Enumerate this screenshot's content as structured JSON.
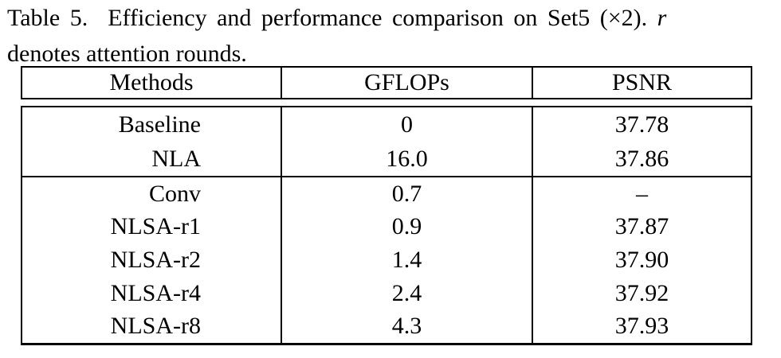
{
  "caption": {
    "label": "Table 5.  ",
    "line1_rest": "Efficiency and performance comparison on Set5 (×2). ",
    "italic_var": "r",
    "line2": "denotes attention rounds."
  },
  "table": {
    "headers": [
      "Methods",
      "GFLOPs",
      "PSNR"
    ],
    "section1": [
      {
        "method": "Baseline",
        "gflops": "0",
        "psnr": "37.78"
      },
      {
        "method": "NLA",
        "gflops": "16.0",
        "psnr": "37.86"
      }
    ],
    "section2": [
      {
        "method": "Conv",
        "gflops": "0.7",
        "psnr": "–"
      },
      {
        "method": "NLSA-r1",
        "gflops": "0.9",
        "psnr": "37.87"
      },
      {
        "method": "NLSA-r2",
        "gflops": "1.4",
        "psnr": "37.90"
      },
      {
        "method": "NLSA-r4",
        "gflops": "2.4",
        "psnr": "37.92"
      },
      {
        "method": "NLSA-r8",
        "gflops": "4.3",
        "psnr": "37.93"
      }
    ]
  }
}
